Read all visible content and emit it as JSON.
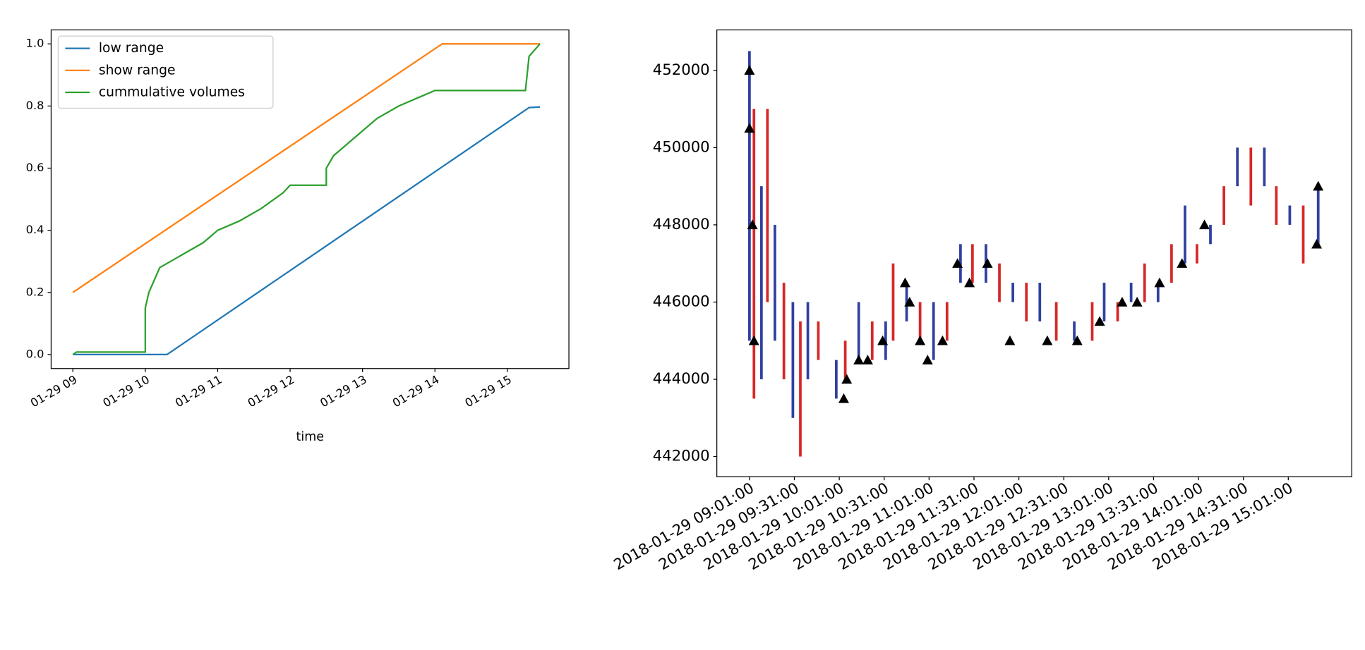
{
  "chart_data": [
    {
      "type": "line",
      "xlabel": "time",
      "xlim": [
        8.7,
        15.85
      ],
      "ylim": [
        -0.045,
        1.045
      ],
      "xticks": [
        {
          "value": 9,
          "label": "01-29 09"
        },
        {
          "value": 10,
          "label": "01-29 10"
        },
        {
          "value": 11,
          "label": "01-29 11"
        },
        {
          "value": 12,
          "label": "01-29 12"
        },
        {
          "value": 13,
          "label": "01-29 13"
        },
        {
          "value": 14,
          "label": "01-29 14"
        },
        {
          "value": 15,
          "label": "01-29 15"
        }
      ],
      "yticks": [
        {
          "value": 0,
          "label": "0.0"
        },
        0.2,
        0.4,
        0.6,
        0.8,
        {
          "value": 1,
          "label": "1.0"
        }
      ],
      "legend": "upper left",
      "series": [
        {
          "name": "low range",
          "color": "#1f77b4",
          "x": [
            9.0,
            10.3,
            15.3,
            15.45
          ],
          "values": [
            0,
            0,
            0.795,
            0.797
          ]
        },
        {
          "name": "show range",
          "color": "#ff7f0e",
          "x": [
            9.0,
            14.1,
            15.45
          ],
          "values": [
            0.2,
            1.0,
            1.0
          ]
        },
        {
          "name": "cummulative volumes",
          "color": "#2ca02c",
          "x": [
            9.0,
            9.05,
            10.0,
            10.0,
            10.05,
            10.2,
            10.5,
            10.8,
            11.0,
            11.3,
            11.6,
            11.9,
            12.0,
            12.5,
            12.5,
            12.6,
            12.8,
            13.0,
            13.2,
            13.5,
            13.8,
            14.0,
            15.25,
            15.3,
            15.45
          ],
          "values": [
            0,
            0.008,
            0.008,
            0.15,
            0.2,
            0.28,
            0.32,
            0.36,
            0.4,
            0.43,
            0.47,
            0.52,
            0.545,
            0.545,
            0.6,
            0.64,
            0.68,
            0.72,
            0.76,
            0.8,
            0.83,
            0.85,
            0.85,
            0.96,
            1.0
          ]
        }
      ]
    },
    {
      "type": "range",
      "xlim": [
        519.2,
        943.4
      ],
      "ylim": [
        441477,
        453048
      ],
      "xticks": [
        {
          "value": 541,
          "label": "2018-01-29 09:01:00"
        },
        {
          "value": 571,
          "label": "2018-01-29 09:31:00"
        },
        {
          "value": 601,
          "label": "2018-01-29 10:01:00"
        },
        {
          "value": 631,
          "label": "2018-01-29 10:31:00"
        },
        {
          "value": 661,
          "label": "2018-01-29 11:01:00"
        },
        {
          "value": 691,
          "label": "2018-01-29 11:31:00"
        },
        {
          "value": 721,
          "label": "2018-01-29 12:01:00"
        },
        {
          "value": 751,
          "label": "2018-01-29 12:31:00"
        },
        {
          "value": 781,
          "label": "2018-01-29 13:01:00"
        },
        {
          "value": 811,
          "label": "2018-01-29 13:31:00"
        },
        {
          "value": 841,
          "label": "2018-01-29 14:01:00"
        },
        {
          "value": 871,
          "label": "2018-01-29 14:31:00"
        },
        {
          "value": 901,
          "label": "2018-01-29 15:01:00"
        }
      ],
      "yticks": [
        442000,
        444000,
        446000,
        448000,
        450000,
        452000
      ],
      "colors": [
        "#3040a0",
        "#d62728"
      ],
      "x": [
        541,
        544,
        549,
        553,
        558,
        564,
        570,
        575,
        580,
        587,
        599,
        605,
        614,
        623,
        632,
        637,
        646,
        655,
        664,
        673,
        682,
        690,
        699,
        708,
        717,
        726,
        735,
        746,
        758,
        770,
        778,
        787,
        796,
        805,
        814,
        823,
        832,
        840,
        849,
        858,
        867,
        876,
        885,
        893,
        902,
        911,
        921
      ],
      "low": [
        445000,
        443500,
        444000,
        446000,
        445000,
        444000,
        443000,
        442000,
        444000,
        444500,
        443500,
        444000,
        444500,
        444500,
        444500,
        445000,
        445500,
        445000,
        444500,
        445000,
        446500,
        446500,
        446500,
        446000,
        446000,
        445500,
        445500,
        445000,
        445000,
        445000,
        445500,
        445500,
        446000,
        446000,
        446000,
        446500,
        447000,
        447000,
        447500,
        448000,
        449000,
        448500,
        449000,
        448000,
        448000,
        447000,
        447500
      ],
      "high": [
        452500,
        451000,
        449000,
        451000,
        448000,
        446500,
        446000,
        445500,
        446000,
        445500,
        444500,
        445000,
        446000,
        445500,
        445500,
        447000,
        446500,
        446000,
        446000,
        446000,
        447500,
        447500,
        447500,
        447000,
        446500,
        446500,
        446500,
        446000,
        445500,
        446000,
        446500,
        446000,
        446500,
        447000,
        446500,
        447500,
        448500,
        447500,
        448000,
        449000,
        450000,
        450000,
        450000,
        449000,
        448500,
        448500,
        449000
      ],
      "markers": {
        "color": "#000000",
        "x": [
          541,
          541,
          543,
          544,
          604,
          606,
          614,
          620,
          630,
          645,
          648,
          655,
          660,
          670,
          680,
          688,
          700,
          715,
          740,
          760,
          775,
          790,
          800,
          815,
          830,
          845,
          920,
          921
        ],
        "values": [
          452000,
          450500,
          448000,
          445000,
          443500,
          444000,
          444500,
          444500,
          445000,
          446500,
          446000,
          445000,
          444500,
          445000,
          447000,
          446500,
          447000,
          445000,
          445000,
          445000,
          445500,
          446000,
          446000,
          446500,
          447000,
          448000,
          447500,
          449000
        ]
      }
    }
  ]
}
